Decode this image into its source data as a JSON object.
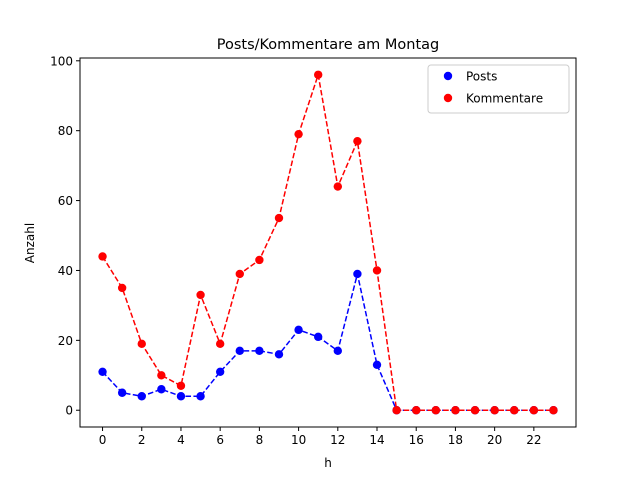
{
  "chart_data": {
    "type": "line",
    "title": "Posts/Kommentare am Montag",
    "xlabel": "h",
    "ylabel": "Anzahl",
    "x": [
      0,
      1,
      2,
      3,
      4,
      5,
      6,
      7,
      8,
      9,
      10,
      11,
      12,
      13,
      14,
      15,
      16,
      17,
      18,
      19,
      20,
      21,
      22,
      23
    ],
    "xlim": [
      -1.15,
      24.15
    ],
    "ylim": [
      -4.8,
      100.8
    ],
    "xticks": [
      0,
      2,
      4,
      6,
      8,
      10,
      12,
      14,
      16,
      18,
      20,
      22
    ],
    "yticks": [
      0,
      20,
      40,
      60,
      80,
      100
    ],
    "grid": false,
    "legend_position": "top-right",
    "series": [
      {
        "name": "Posts",
        "color": "#0000ff",
        "line_style": "dashed",
        "marker": "circle",
        "values": [
          11,
          5,
          4,
          6,
          4,
          4,
          11,
          17,
          17,
          16,
          23,
          21,
          17,
          39,
          13,
          0,
          0,
          0,
          0,
          0,
          0,
          0,
          0,
          0
        ]
      },
      {
        "name": "Kommentare",
        "color": "#ff0000",
        "line_style": "dashed",
        "marker": "circle",
        "values": [
          44,
          35,
          19,
          10,
          7,
          33,
          19,
          39,
          43,
          55,
          79,
          96,
          64,
          77,
          40,
          0,
          0,
          0,
          0,
          0,
          0,
          0,
          0,
          0
        ]
      }
    ]
  }
}
